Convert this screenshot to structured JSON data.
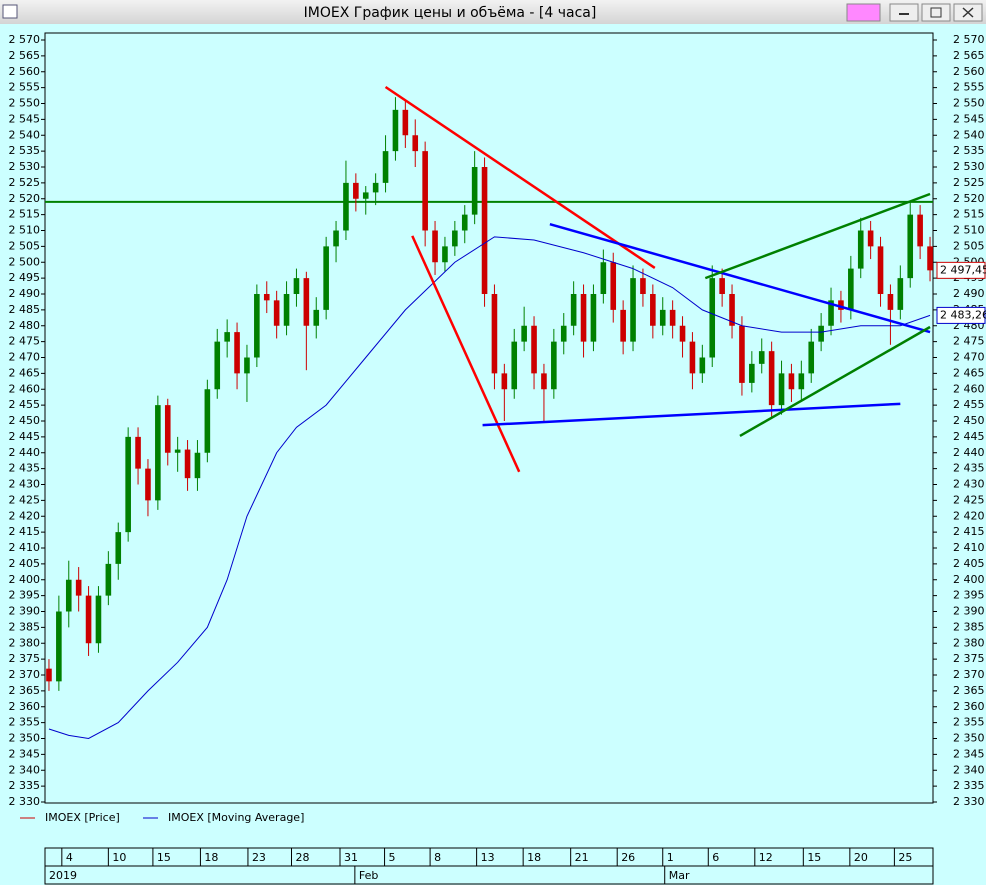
{
  "chart_data": {
    "type": "candlestick",
    "title": "IMOEX График цены и объёма - [4 часа]",
    "xlim": [
      -0.4,
      89.3
    ],
    "ylim": [
      2330,
      2570
    ],
    "yticks": [
      {
        "value": 2330,
        "label": "2 330"
      },
      {
        "value": 2335,
        "label": "2 335"
      },
      {
        "value": 2340,
        "label": "2 340"
      },
      {
        "value": 2345,
        "label": "2 345"
      },
      {
        "value": 2350,
        "label": "2 350"
      },
      {
        "value": 2355,
        "label": "2 355"
      },
      {
        "value": 2360,
        "label": "2 360"
      },
      {
        "value": 2365,
        "label": "2 365"
      },
      {
        "value": 2370,
        "label": "2 370"
      },
      {
        "value": 2375,
        "label": "2 375"
      },
      {
        "value": 2380,
        "label": "2 380"
      },
      {
        "value": 2385,
        "label": "2 385"
      },
      {
        "value": 2390,
        "label": "2 390"
      },
      {
        "value": 2395,
        "label": "2 395"
      },
      {
        "value": 2400,
        "label": "2 400"
      },
      {
        "value": 2405,
        "label": "2 405"
      },
      {
        "value": 2410,
        "label": "2 410"
      },
      {
        "value": 2415,
        "label": "2 415"
      },
      {
        "value": 2420,
        "label": "2 420"
      },
      {
        "value": 2425,
        "label": "2 425"
      },
      {
        "value": 2430,
        "label": "2 430"
      },
      {
        "value": 2435,
        "label": "2 435"
      },
      {
        "value": 2440,
        "label": "2 440"
      },
      {
        "value": 2445,
        "label": "2 445"
      },
      {
        "value": 2450,
        "label": "2 450"
      },
      {
        "value": 2455,
        "label": "2 455"
      },
      {
        "value": 2460,
        "label": "2 460"
      },
      {
        "value": 2465,
        "label": "2 465"
      },
      {
        "value": 2470,
        "label": "2 470"
      },
      {
        "value": 2475,
        "label": "2 475"
      },
      {
        "value": 2480,
        "label": "2 480"
      },
      {
        "value": 2485,
        "label": "2 485"
      },
      {
        "value": 2490,
        "label": "2 490"
      },
      {
        "value": 2495,
        "label": "2 495"
      },
      {
        "value": 2500,
        "label": "2 500"
      },
      {
        "value": 2505,
        "label": "2 505"
      },
      {
        "value": 2510,
        "label": "2 510"
      },
      {
        "value": 2515,
        "label": "2 515"
      },
      {
        "value": 2520,
        "label": "2 520"
      },
      {
        "value": 2525,
        "label": "2 525"
      },
      {
        "value": 2530,
        "label": "2 530"
      },
      {
        "value": 2535,
        "label": "2 535"
      },
      {
        "value": 2540,
        "label": "2 540"
      },
      {
        "value": 2545,
        "label": "2 545"
      },
      {
        "value": 2550,
        "label": "2 550"
      },
      {
        "value": 2555,
        "label": "2 555"
      },
      {
        "value": 2560,
        "label": "2 560"
      },
      {
        "value": 2565,
        "label": "2 565"
      },
      {
        "value": 2570,
        "label": "2 570"
      }
    ],
    "xticks": [
      {
        "value": 1.3,
        "label": "4"
      },
      {
        "value": 6,
        "label": "10"
      },
      {
        "value": 10.5,
        "label": "15"
      },
      {
        "value": 15.3,
        "label": "18"
      },
      {
        "value": 20.1,
        "label": "23"
      },
      {
        "value": 24.5,
        "label": "28"
      },
      {
        "value": 29.4,
        "label": "31"
      },
      {
        "value": 33.9,
        "label": "5"
      },
      {
        "value": 38.5,
        "label": "8"
      },
      {
        "value": 43.2,
        "label": "13"
      },
      {
        "value": 47.9,
        "label": "18"
      },
      {
        "value": 52.7,
        "label": "21"
      },
      {
        "value": 57.4,
        "label": "26"
      },
      {
        "value": 62,
        "label": "1"
      },
      {
        "value": 66.6,
        "label": "6"
      },
      {
        "value": 71.3,
        "label": "12"
      },
      {
        "value": 76.2,
        "label": "15"
      },
      {
        "value": 80.9,
        "label": "20"
      },
      {
        "value": 85.4,
        "label": "25"
      }
    ],
    "month_ticks": [
      {
        "value": -0.4,
        "label": "2019"
      },
      {
        "value": 30.9,
        "label": "Feb"
      },
      {
        "value": 62.2,
        "label": "Mar"
      }
    ],
    "series": [
      {
        "name": "IMOEX [Price]",
        "color": "#cc0000",
        "up_color": "#008000",
        "open": [
          2372,
          2368,
          2390,
          2400,
          2395,
          2380,
          2395,
          2405,
          2415,
          2445,
          2435,
          2425,
          2455,
          2440,
          2441,
          2432,
          2440,
          2460,
          2475,
          2478,
          2465,
          2470,
          2490,
          2488,
          2480,
          2490,
          2495,
          2480,
          2485,
          2505,
          2510,
          2525,
          2520,
          2522,
          2525,
          2535,
          2548,
          2540,
          2535,
          2510,
          2500,
          2505,
          2510,
          2515,
          2530,
          2490,
          2465,
          2460,
          2475,
          2480,
          2465,
          2460,
          2475,
          2480,
          2490,
          2475,
          2490,
          2500,
          2485,
          2475,
          2495,
          2490,
          2480,
          2485,
          2480,
          2475,
          2465,
          2470,
          2495,
          2490,
          2480,
          2462,
          2468,
          2472,
          2455,
          2465,
          2460,
          2465,
          2475,
          2480,
          2488,
          2485,
          2498,
          2510,
          2505,
          2490,
          2485,
          2495,
          2515,
          2505
        ],
        "high": [
          2375,
          2395,
          2406,
          2404,
          2398,
          2398,
          2409,
          2418,
          2448,
          2448,
          2438,
          2458,
          2457,
          2445,
          2444,
          2444,
          2463,
          2479,
          2482,
          2481,
          2474,
          2493,
          2494,
          2491,
          2494,
          2498,
          2497,
          2489,
          2508,
          2513,
          2532,
          2528,
          2524,
          2528,
          2540,
          2552,
          2551,
          2545,
          2538,
          2513,
          2508,
          2513,
          2518,
          2535,
          2533,
          2493,
          2468,
          2479,
          2486,
          2483,
          2468,
          2479,
          2484,
          2494,
          2493,
          2493,
          2504,
          2503,
          2488,
          2499,
          2498,
          2493,
          2489,
          2488,
          2483,
          2478,
          2474,
          2499,
          2498,
          2493,
          2483,
          2472,
          2476,
          2475,
          2469,
          2468,
          2469,
          2479,
          2484,
          2492,
          2491,
          2502,
          2514,
          2513,
          2508,
          2493,
          2499,
          2519,
          2518,
          2508
        ],
        "low": [
          2365,
          2365,
          2385,
          2390,
          2376,
          2377,
          2392,
          2400,
          2412,
          2430,
          2420,
          2422,
          2436,
          2434,
          2428,
          2428,
          2437,
          2457,
          2470,
          2460,
          2456,
          2467,
          2484,
          2476,
          2477,
          2486,
          2466,
          2476,
          2482,
          2500,
          2507,
          2516,
          2515,
          2518,
          2522,
          2532,
          2536,
          2530,
          2505,
          2496,
          2497,
          2502,
          2506,
          2512,
          2486,
          2460,
          2450,
          2457,
          2472,
          2460,
          2450,
          2457,
          2471,
          2477,
          2470,
          2472,
          2487,
          2481,
          2471,
          2472,
          2486,
          2476,
          2477,
          2476,
          2470,
          2460,
          2462,
          2467,
          2486,
          2476,
          2458,
          2459,
          2465,
          2451,
          2452,
          2456,
          2456,
          2462,
          2472,
          2477,
          2481,
          2482,
          2495,
          2501,
          2486,
          2474,
          2482,
          2492,
          2501,
          2494
        ],
        "close": [
          2368,
          2390,
          2400,
          2395,
          2380,
          2395,
          2405,
          2415,
          2445,
          2435,
          2425,
          2455,
          2440,
          2441,
          2432,
          2440,
          2460,
          2475,
          2478,
          2465,
          2470,
          2490,
          2488,
          2480,
          2490,
          2495,
          2480,
          2485,
          2505,
          2510,
          2525,
          2520,
          2522,
          2525,
          2535,
          2548,
          2540,
          2535,
          2510,
          2500,
          2505,
          2510,
          2515,
          2530,
          2490,
          2465,
          2460,
          2475,
          2480,
          2465,
          2460,
          2475,
          2480,
          2490,
          2475,
          2490,
          2500,
          2485,
          2475,
          2495,
          2490,
          2480,
          2485,
          2480,
          2475,
          2465,
          2470,
          2495,
          2490,
          2480,
          2462,
          2468,
          2472,
          2455,
          2465,
          2460,
          2465,
          2475,
          2480,
          2488,
          2485,
          2498,
          2510,
          2505,
          2490,
          2485,
          2495,
          2515,
          2505,
          2497.45
        ],
        "last_value": 2497.45,
        "last_label": "2 497,45"
      },
      {
        "name": "IMOEX [Moving Average]",
        "color": "#0000cc",
        "x": [
          0,
          2,
          4,
          7,
          10,
          13,
          16,
          18,
          20,
          23,
          25,
          28,
          32,
          36,
          41,
          45,
          49,
          54,
          59,
          63,
          66,
          70,
          74,
          78,
          82,
          86,
          89
        ],
        "values": [
          2353,
          2351,
          2350,
          2355,
          2365,
          2374,
          2385,
          2400,
          2420,
          2440,
          2448,
          2455,
          2470,
          2485,
          2500,
          2508,
          2507,
          2503,
          2498,
          2492,
          2485,
          2480,
          2478,
          2478,
          2480,
          2480,
          2483.26
        ],
        "last_value": 2483.26,
        "last_label": "2 483,26"
      }
    ],
    "hlines": [
      {
        "value": 2519,
        "color": "#008000"
      }
    ],
    "trendlines": [
      {
        "color": "#ff0000",
        "x": [
          34,
          61.2
        ],
        "values": [
          2555.2,
          2498.2
        ]
      },
      {
        "color": "#ff0000",
        "x": [
          36.7,
          47.5
        ],
        "values": [
          2508.3,
          2434
        ]
      },
      {
        "color": "#0000ff",
        "x": [
          50.6,
          89
        ],
        "values": [
          2512,
          2478
        ]
      },
      {
        "color": "#0000ff",
        "x": [
          43.8,
          86
        ],
        "values": [
          2448.7,
          2455.4
        ]
      },
      {
        "color": "#008000",
        "x": [
          66.3,
          89
        ],
        "values": [
          2495,
          2521.5
        ]
      },
      {
        "color": "#008000",
        "x": [
          69.8,
          89
        ],
        "values": [
          2445.3,
          2479.6
        ]
      }
    ]
  }
}
